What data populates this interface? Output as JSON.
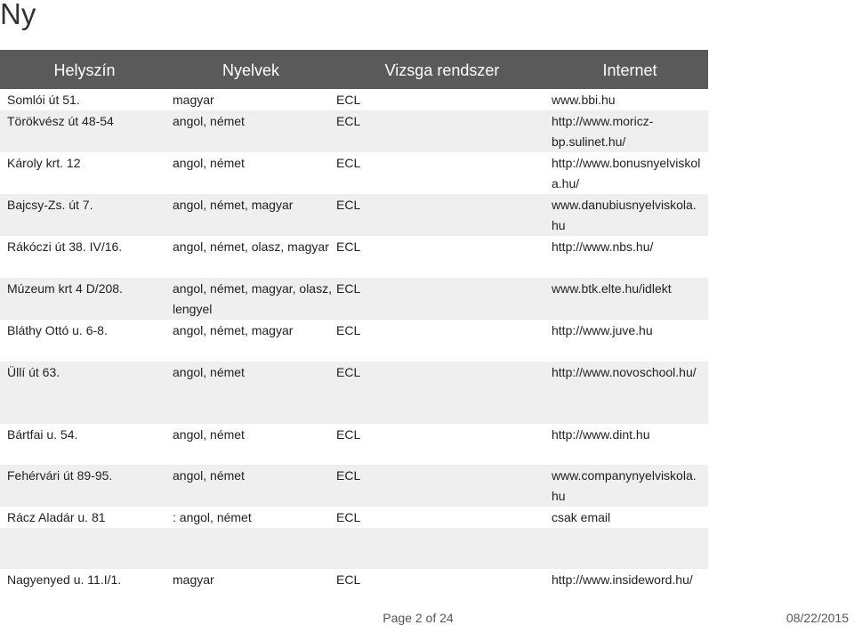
{
  "page": {
    "title": "Ny"
  },
  "table": {
    "headers": [
      "Helyszín",
      "Nyelvek",
      "Vizsga rendszer",
      "Internet"
    ],
    "rows": [
      {
        "place": "Somlói út 51.",
        "languages": "magyar",
        "exam": "ECL",
        "internet": "www.bbi.hu"
      },
      {
        "place": "Törökvész út 48-54",
        "languages": "angol, német",
        "exam": "ECL",
        "internet": "http://www.moricz-bp.sulinet.hu/"
      },
      {
        "place": "Károly krt. 12",
        "languages": "angol, német",
        "exam": "ECL",
        "internet": "http://www.bonusnyelviskola.hu/"
      },
      {
        "place": "Bajcsy-Zs. út 7.",
        "languages": "angol, német, magyar",
        "exam": "ECL",
        "internet": "www.danubiusnyelviskola.hu"
      },
      {
        "place": "Rákóczi út 38. IV/16.",
        "languages": "angol, német, olasz, magyar",
        "exam": "ECL",
        "internet": "http://www.nbs.hu/"
      },
      {
        "place": "Múzeum krt 4 D/208.",
        "languages": "angol, német, magyar, olasz, lengyel",
        "exam": "ECL",
        "internet": "www.btk.elte.hu/idlekt"
      },
      {
        "place": "Bláthy Ottó u. 6-8.",
        "languages": "angol, német, magyar",
        "exam": "ECL",
        "internet": "http://www.juve.hu"
      },
      {
        "place": "Üllí út 63.",
        "languages": "angol, német",
        "exam": "ECL",
        "internet": "http://www.novoschool.hu/"
      },
      {
        "place": "Bártfai u. 54.",
        "languages": "angol, német",
        "exam": "ECL",
        "internet": "http://www.dint.hu"
      },
      {
        "place": "Fehérvári út 89-95.",
        "languages": "angol, német",
        "exam": "ECL",
        "internet": "www.companynyelviskola.hu"
      },
      {
        "place": "Rácz Aladár u. 81",
        "languages": ": angol, német",
        "exam": "ECL",
        "internet": "csak email"
      },
      {
        "place": "",
        "languages": "",
        "exam": "",
        "internet": ""
      },
      {
        "place": "Nagyenyed u. 11.I/1.",
        "languages": "magyar",
        "exam": "ECL",
        "internet": "http://www.insideword.hu/"
      }
    ]
  },
  "footer": {
    "page_label": "Page 2 of 24",
    "date": "08/22/2015"
  }
}
